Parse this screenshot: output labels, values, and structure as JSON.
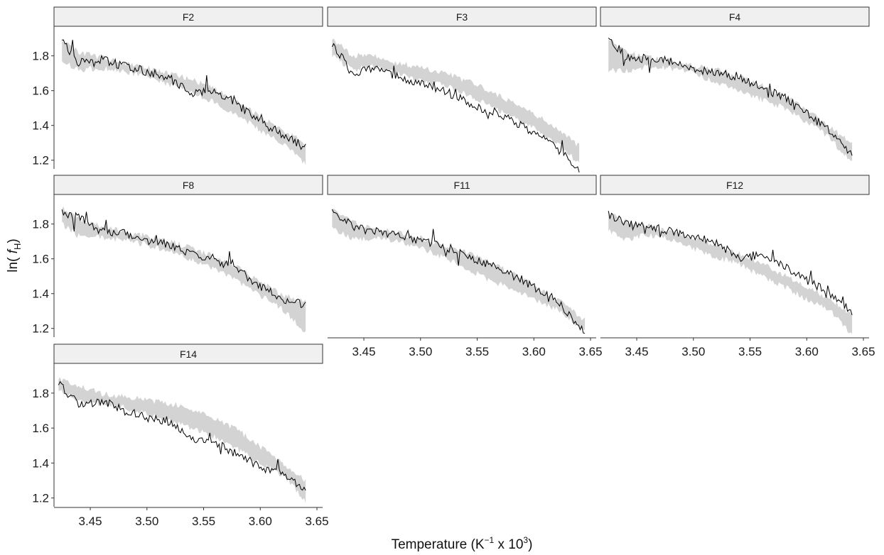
{
  "chart_data": {
    "type": "line",
    "layout": "faceted",
    "xlabel": {
      "main": "Temperature (K",
      "sup1": "−1",
      "mid": " x 10",
      "sup2": "3",
      "end": ")"
    },
    "ylabel": {
      "pre": "ln( ",
      "var": "f",
      "sub": "H",
      "post": ")"
    },
    "xlim": [
      3.418,
      3.655
    ],
    "ylim": [
      1.15,
      1.97
    ],
    "x_ticks": [
      3.45,
      3.5,
      3.55,
      3.6,
      3.65
    ],
    "x_tick_labels": [
      "3.45",
      "3.50",
      "3.55",
      "3.60",
      "3.65"
    ],
    "y_ticks": [
      1.2,
      1.4,
      1.6,
      1.8
    ],
    "y_tick_labels": [
      "1.2",
      "1.4",
      "1.6",
      "1.8"
    ],
    "band_color": "#d3d3d3",
    "line_color": "#000000",
    "strip_fill": "#f0f0f0",
    "facets": [
      {
        "label": "F2",
        "x": [
          3.425,
          3.44,
          3.46,
          3.48,
          3.5,
          3.52,
          3.54,
          3.56,
          3.58,
          3.6,
          3.62,
          3.64
        ],
        "observed": [
          1.88,
          1.76,
          1.78,
          1.74,
          1.71,
          1.68,
          1.58,
          1.6,
          1.52,
          1.42,
          1.35,
          1.27
        ],
        "band_lower": [
          1.77,
          1.72,
          1.73,
          1.71,
          1.68,
          1.63,
          1.59,
          1.53,
          1.46,
          1.37,
          1.3,
          1.18
        ],
        "band_upper": [
          1.9,
          1.82,
          1.79,
          1.76,
          1.73,
          1.7,
          1.66,
          1.61,
          1.54,
          1.45,
          1.37,
          1.3
        ]
      },
      {
        "label": "F3",
        "x": [
          3.422,
          3.44,
          3.46,
          3.48,
          3.5,
          3.52,
          3.54,
          3.56,
          3.58,
          3.6,
          3.62,
          3.64
        ],
        "observed": [
          1.87,
          1.7,
          1.73,
          1.68,
          1.64,
          1.6,
          1.54,
          1.48,
          1.43,
          1.36,
          1.28,
          1.15
        ],
        "band_lower": [
          1.8,
          1.72,
          1.74,
          1.7,
          1.66,
          1.63,
          1.58,
          1.52,
          1.45,
          1.39,
          1.3,
          1.18
        ],
        "band_upper": [
          1.9,
          1.8,
          1.8,
          1.76,
          1.73,
          1.7,
          1.66,
          1.6,
          1.54,
          1.47,
          1.38,
          1.28
        ]
      },
      {
        "label": "F4",
        "x": [
          3.425,
          3.44,
          3.46,
          3.48,
          3.5,
          3.52,
          3.54,
          3.56,
          3.58,
          3.6,
          3.62,
          3.64
        ],
        "observed": [
          1.9,
          1.8,
          1.78,
          1.77,
          1.73,
          1.7,
          1.68,
          1.62,
          1.56,
          1.47,
          1.37,
          1.22
        ],
        "band_lower": [
          1.72,
          1.71,
          1.74,
          1.73,
          1.7,
          1.65,
          1.6,
          1.55,
          1.5,
          1.42,
          1.33,
          1.18
        ],
        "band_upper": [
          1.9,
          1.82,
          1.79,
          1.77,
          1.74,
          1.72,
          1.68,
          1.63,
          1.57,
          1.49,
          1.39,
          1.3
        ]
      },
      {
        "label": "F8",
        "x": [
          3.425,
          3.44,
          3.46,
          3.48,
          3.5,
          3.52,
          3.54,
          3.56,
          3.58,
          3.6,
          3.62,
          3.64
        ],
        "observed": [
          1.86,
          1.84,
          1.76,
          1.75,
          1.7,
          1.68,
          1.62,
          1.6,
          1.53,
          1.44,
          1.37,
          1.33
        ],
        "band_lower": [
          1.8,
          1.73,
          1.72,
          1.71,
          1.68,
          1.64,
          1.59,
          1.54,
          1.47,
          1.39,
          1.31,
          1.18
        ],
        "band_upper": [
          1.89,
          1.83,
          1.79,
          1.76,
          1.73,
          1.7,
          1.66,
          1.61,
          1.55,
          1.47,
          1.39,
          1.35
        ]
      },
      {
        "label": "F11",
        "x": [
          3.422,
          3.44,
          3.46,
          3.48,
          3.5,
          3.52,
          3.54,
          3.56,
          3.58,
          3.6,
          3.62,
          3.645
        ],
        "observed": [
          1.89,
          1.78,
          1.76,
          1.73,
          1.7,
          1.67,
          1.62,
          1.57,
          1.51,
          1.44,
          1.36,
          1.18
        ],
        "band_lower": [
          1.78,
          1.71,
          1.72,
          1.7,
          1.66,
          1.61,
          1.55,
          1.48,
          1.43,
          1.37,
          1.31,
          1.19
        ],
        "band_upper": [
          1.89,
          1.81,
          1.78,
          1.75,
          1.72,
          1.68,
          1.64,
          1.58,
          1.52,
          1.45,
          1.37,
          1.25
        ]
      },
      {
        "label": "F12",
        "x": [
          3.425,
          3.44,
          3.46,
          3.48,
          3.5,
          3.52,
          3.54,
          3.56,
          3.58,
          3.6,
          3.62,
          3.64
        ],
        "observed": [
          1.86,
          1.8,
          1.79,
          1.76,
          1.72,
          1.7,
          1.6,
          1.62,
          1.56,
          1.48,
          1.4,
          1.29
        ],
        "band_lower": [
          1.76,
          1.71,
          1.74,
          1.71,
          1.66,
          1.61,
          1.57,
          1.5,
          1.44,
          1.37,
          1.31,
          1.16
        ],
        "band_upper": [
          1.86,
          1.82,
          1.79,
          1.75,
          1.72,
          1.68,
          1.63,
          1.57,
          1.51,
          1.44,
          1.37,
          1.28
        ]
      },
      {
        "label": "F14",
        "x": [
          3.422,
          3.44,
          3.46,
          3.48,
          3.5,
          3.52,
          3.54,
          3.56,
          3.58,
          3.6,
          3.62,
          3.64
        ],
        "observed": [
          1.86,
          1.73,
          1.75,
          1.7,
          1.66,
          1.63,
          1.53,
          1.52,
          1.45,
          1.38,
          1.33,
          1.25
        ],
        "band_lower": [
          1.82,
          1.75,
          1.74,
          1.72,
          1.68,
          1.64,
          1.6,
          1.55,
          1.48,
          1.4,
          1.33,
          1.18
        ],
        "band_upper": [
          1.88,
          1.84,
          1.8,
          1.78,
          1.76,
          1.74,
          1.71,
          1.66,
          1.59,
          1.49,
          1.4,
          1.3
        ]
      }
    ]
  }
}
